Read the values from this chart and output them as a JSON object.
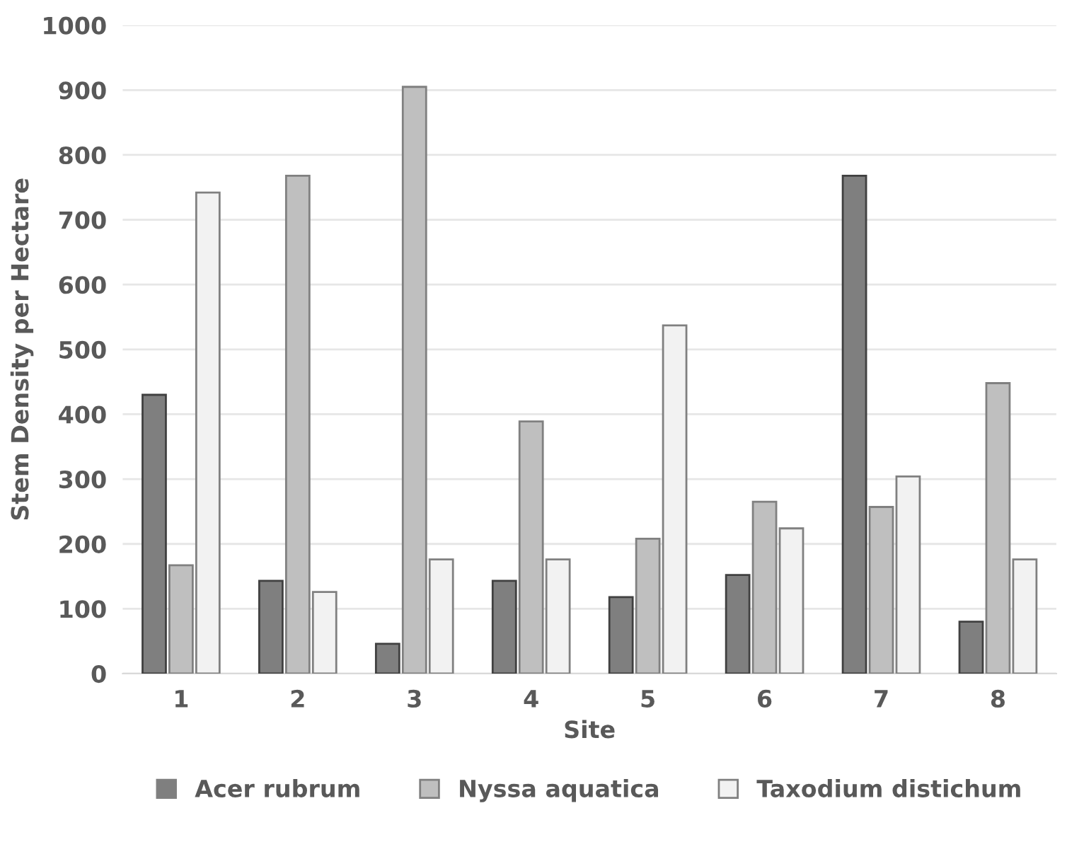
{
  "chart_data": {
    "type": "bar",
    "xlabel": "Site",
    "ylabel": "Stem Density per Hectare",
    "categories": [
      "1",
      "2",
      "3",
      "4",
      "5",
      "6",
      "7",
      "8"
    ],
    "series": [
      {
        "name": "Acer rubrum",
        "color": "#7f7f7f",
        "values": [
          430,
          143,
          46,
          143,
          118,
          152,
          768,
          80
        ]
      },
      {
        "name": "Nyssa aquatica",
        "color": "#bfbfbf",
        "values": [
          167,
          768,
          905,
          389,
          208,
          265,
          257,
          448
        ]
      },
      {
        "name": "Taxodium distichum",
        "color": "#f2f2f2",
        "values": [
          742,
          126,
          176,
          176,
          537,
          224,
          304,
          176
        ]
      }
    ],
    "ylim": [
      0,
      1000
    ],
    "yticks": [
      0,
      100,
      200,
      300,
      400,
      500,
      600,
      700,
      800,
      900,
      1000
    ],
    "grid": "y",
    "legend": "bottom"
  }
}
